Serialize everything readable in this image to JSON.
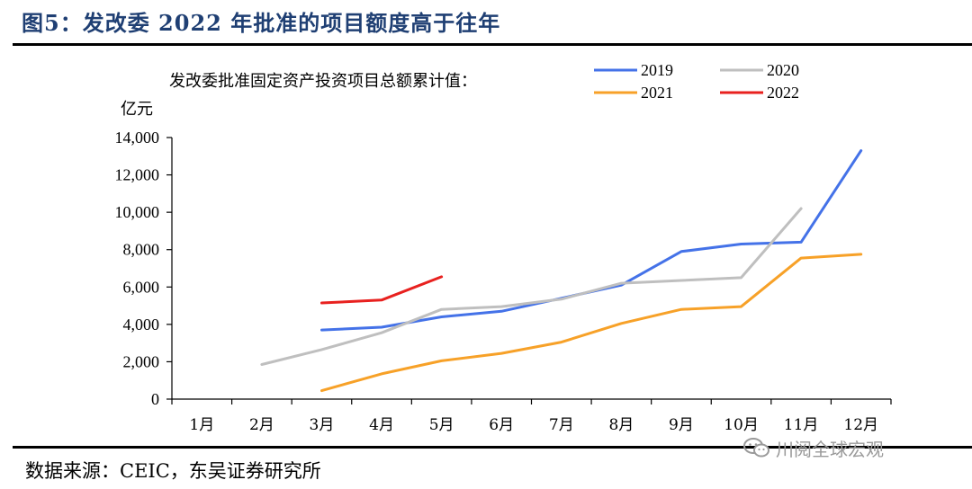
{
  "figure_title": "图5：发改委 2022 年批准的项目额度高于往年",
  "source": "数据来源：CEIC，东吴证券研究所",
  "watermark": "川阅全球宏观",
  "chart_data": {
    "type": "line",
    "subtitle": "发改委批准固定资产投资项目总额累计值：",
    "unit_label": "亿元",
    "categories": [
      "1月",
      "2月",
      "3月",
      "4月",
      "5月",
      "6月",
      "7月",
      "8月",
      "9月",
      "10月",
      "11月",
      "12月"
    ],
    "y_ticks": [
      "0",
      "2,000",
      "4,000",
      "6,000",
      "8,000",
      "10,000",
      "12,000",
      "14,000"
    ],
    "ylim": [
      0,
      14000
    ],
    "grid": false,
    "legend_position": "top-right",
    "series": [
      {
        "name": "2019",
        "color": "#4472e8",
        "values": [
          null,
          null,
          3700,
          3850,
          4400,
          4700,
          5400,
          6100,
          7900,
          8300,
          8400,
          13300
        ]
      },
      {
        "name": "2020",
        "color": "#bfbfbf",
        "values": [
          null,
          1850,
          2650,
          3550,
          4800,
          4950,
          5350,
          6200,
          6350,
          6500,
          10200,
          null
        ]
      },
      {
        "name": "2021",
        "color": "#f7a128",
        "values": [
          null,
          null,
          450,
          1350,
          2050,
          2450,
          3050,
          4050,
          4800,
          4950,
          7550,
          7750
        ]
      },
      {
        "name": "2022",
        "color": "#e8211f",
        "values": [
          null,
          null,
          5150,
          5300,
          6550,
          null,
          null,
          null,
          null,
          null,
          null,
          null
        ]
      }
    ]
  }
}
